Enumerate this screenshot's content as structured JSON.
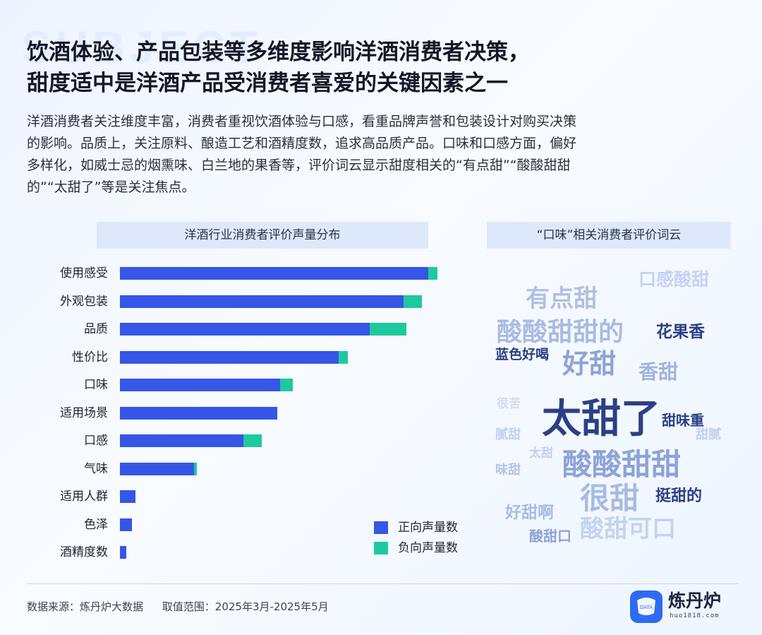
{
  "watermark": "SUBJECT",
  "title_line1": "饮酒体验、产品包装等多维度影响洋酒消费者决策，",
  "title_line2": "甜度适中是洋酒产品受消费者喜爱的关键因素之一",
  "subtitle_lines": [
    "洋酒消费者关注维度丰富，消费者重视饮酒体验与口感，看重品牌声誉和包装设计对购买决策",
    "的影响。品质上，关注原料、酿造工艺和酒精度数，追求高品质产品。口味和口感方面，偏好",
    "多样化，如威士忌的烟熏味、白兰地的果香等，评价词云显示甜度相关的“有点甜”“酸酸甜甜",
    "的”“太甜了”等是关注焦点。"
  ],
  "bar_chart_header": "洋酒行业消费者评价声量分布",
  "word_cloud_header": "“口味”相关消费者评价词云",
  "chart_data": {
    "type": "bar",
    "orientation": "horizontal",
    "stacked": true,
    "categories": [
      "使用感受",
      "外观包装",
      "品质",
      "性价比",
      "口味",
      "适用场景",
      "口感",
      "气味",
      "适用人群",
      "色泽",
      "酒精度数"
    ],
    "series": [
      {
        "name": "正向声量数",
        "color": "#3556e6",
        "values": [
          100,
          92,
          81,
          71,
          52,
          51,
          40,
          24,
          5,
          4,
          2
        ]
      },
      {
        "name": "负向声量数",
        "color": "#1fc9a0",
        "values": [
          3,
          6,
          12,
          3,
          4,
          0,
          6,
          1,
          0,
          0,
          0
        ]
      }
    ],
    "xlim": [
      0,
      103
    ],
    "legend_position": "bottom-right"
  },
  "legend": [
    "正向声量数",
    "负向声量数"
  ],
  "word_cloud": [
    {
      "text": "口感酸甜",
      "size": 25,
      "color": "#c4d3f0"
    },
    {
      "text": "有点甜",
      "size": 34,
      "color": "#b0c0e3"
    },
    {
      "text": "酸酸甜甜的",
      "size": 36,
      "color": "#a9bbe3"
    },
    {
      "text": "花果香",
      "size": 23,
      "color": "#2c3f86"
    },
    {
      "text": "蓝色好喝",
      "size": 19,
      "color": "#2c3f86"
    },
    {
      "text": "好甜",
      "size": 38,
      "color": "#8ea3d6"
    },
    {
      "text": "香甜",
      "size": 28,
      "color": "#a0b3df"
    },
    {
      "text": "很苦",
      "size": 17,
      "color": "#d3ddf1"
    },
    {
      "text": "太甜了",
      "size": 56,
      "color": "#2c3f86"
    },
    {
      "text": "甜味重",
      "size": 20,
      "color": "#2c3f86"
    },
    {
      "text": "腻甜",
      "size": 18,
      "color": "#c3d0ee"
    },
    {
      "text": "甜腻",
      "size": 18,
      "color": "#c3d0ee"
    },
    {
      "text": "太甜",
      "size": 17,
      "color": "#c3d0ee"
    },
    {
      "text": "酸酸甜甜",
      "size": 42,
      "color": "#8ea3d6"
    },
    {
      "text": "味甜",
      "size": 18,
      "color": "#b3c3e7"
    },
    {
      "text": "很甜",
      "size": 42,
      "color": "#a9bbe3"
    },
    {
      "text": "挺甜的",
      "size": 22,
      "color": "#2c3f86"
    },
    {
      "text": "好甜啊",
      "size": 23,
      "color": "#a9bbe3"
    },
    {
      "text": "酸甜可口",
      "size": 34,
      "color": "#c4d3f0"
    },
    {
      "text": "酸甜口",
      "size": 20,
      "color": "#8ea3d6"
    }
  ],
  "footer": {
    "source": "数据来源：炼丹炉大数据",
    "range": "取值范围：2025年3月-2025年5月"
  },
  "logo": {
    "icon_text": "DATA",
    "name": "炼丹炉",
    "url": "huo1818.com"
  }
}
